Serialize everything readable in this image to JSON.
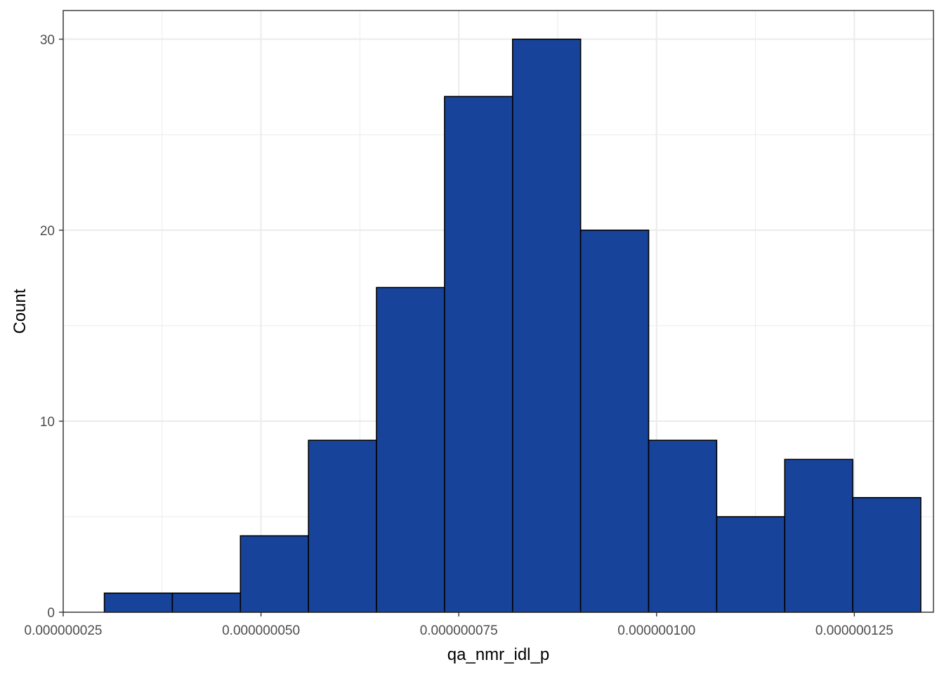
{
  "chart_data": {
    "type": "histogram",
    "xlabel": "qa_nmr_idl_p",
    "ylabel": "Count",
    "xlim": [
      2.5e-08,
      1.35e-07
    ],
    "ylim": [
      0,
      31.5
    ],
    "x_ticks": [
      2.5e-08,
      5e-08,
      7.5e-08,
      1e-07,
      1.25e-07
    ],
    "x_tick_labels": [
      "0.000000025",
      "0.000000050",
      "0.000000075",
      "0.000000100",
      "0.000000125"
    ],
    "y_ticks": [
      0,
      10,
      20,
      30
    ],
    "y_tick_labels": [
      "0",
      "10",
      "20",
      "30"
    ],
    "bins": [
      {
        "x0": 3.02e-08,
        "x1": 3.88e-08,
        "count": 1
      },
      {
        "x0": 3.88e-08,
        "x1": 4.74e-08,
        "count": 1
      },
      {
        "x0": 4.74e-08,
        "x1": 5.6e-08,
        "count": 4
      },
      {
        "x0": 5.6e-08,
        "x1": 6.46e-08,
        "count": 9
      },
      {
        "x0": 6.46e-08,
        "x1": 7.32e-08,
        "count": 17
      },
      {
        "x0": 7.32e-08,
        "x1": 8.18e-08,
        "count": 27
      },
      {
        "x0": 8.18e-08,
        "x1": 9.04e-08,
        "count": 30
      },
      {
        "x0": 9.04e-08,
        "x1": 9.9e-08,
        "count": 20
      },
      {
        "x0": 9.9e-08,
        "x1": 1.076e-07,
        "count": 9
      },
      {
        "x0": 1.076e-07,
        "x1": 1.162e-07,
        "count": 5
      },
      {
        "x0": 1.162e-07,
        "x1": 1.248e-07,
        "count": 8
      },
      {
        "x0": 1.248e-07,
        "x1": 1.334e-07,
        "count": 6
      }
    ],
    "grid": true,
    "colors": {
      "fill": "#18439a",
      "outline": "#000000",
      "grid": "#ebebeb",
      "panel_border": "#333333"
    }
  }
}
